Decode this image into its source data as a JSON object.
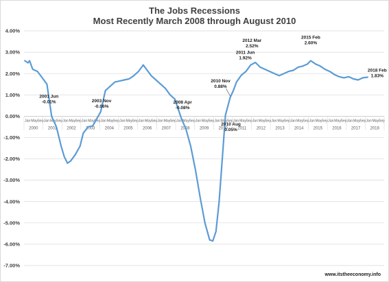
{
  "chart_data": {
    "type": "line",
    "title": "The Jobs Recessions",
    "subtitle": "Most Recently March 2008 through August 2010",
    "ylim": [
      -7.0,
      4.0
    ],
    "y_ticks": [
      "4.00%",
      "3.00%",
      "2.00%",
      "1.00%",
      "0.00%",
      "-1.00%",
      "-2.00%",
      "-3.00%",
      "-4.00%",
      "-5.00%",
      "-6.00%",
      "-7.00%"
    ],
    "month_labels": [
      "Jan",
      "May",
      "Sep"
    ],
    "years": [
      "2000",
      "2001",
      "2002",
      "2003",
      "2004",
      "2005",
      "2006",
      "2007",
      "2008",
      "2009",
      "2010",
      "2011",
      "2012",
      "2013",
      "2014",
      "2015",
      "2016",
      "2017",
      "2018"
    ],
    "grid": "horizontal",
    "series": [
      {
        "color": "#5b9bd5",
        "points": [
          [
            "2000-01",
            2.6
          ],
          [
            "2000-03",
            2.5
          ],
          [
            "2000-04",
            2.6
          ],
          [
            "2000-06",
            2.2
          ],
          [
            "2000-09",
            2.1
          ],
          [
            "2000-12",
            1.8
          ],
          [
            "2001-03",
            1.5
          ],
          [
            "2001-06",
            -0.01
          ],
          [
            "2001-09",
            -0.5
          ],
          [
            "2001-12",
            -1.4
          ],
          [
            "2002-02",
            -1.9
          ],
          [
            "2002-04",
            -2.2
          ],
          [
            "2002-06",
            -2.1
          ],
          [
            "2002-09",
            -1.8
          ],
          [
            "2002-12",
            -1.4
          ],
          [
            "2003-02",
            -0.8
          ],
          [
            "2003-05",
            -0.5
          ],
          [
            "2003-08",
            -0.45
          ],
          [
            "2003-11",
            -0.06
          ],
          [
            "2004-01",
            0.2
          ],
          [
            "2004-04",
            1.2
          ],
          [
            "2004-07",
            1.4
          ],
          [
            "2004-10",
            1.6
          ],
          [
            "2005-01",
            1.65
          ],
          [
            "2005-04",
            1.7
          ],
          [
            "2005-07",
            1.75
          ],
          [
            "2005-10",
            1.9
          ],
          [
            "2006-01",
            2.1
          ],
          [
            "2006-03",
            2.3
          ],
          [
            "2006-04",
            2.4
          ],
          [
            "2006-06",
            2.2
          ],
          [
            "2006-09",
            1.9
          ],
          [
            "2006-12",
            1.7
          ],
          [
            "2007-03",
            1.5
          ],
          [
            "2007-06",
            1.3
          ],
          [
            "2007-09",
            1.0
          ],
          [
            "2007-12",
            0.8
          ],
          [
            "2008-04",
            -0.08
          ],
          [
            "2008-07",
            -0.6
          ],
          [
            "2008-10",
            -1.4
          ],
          [
            "2009-01",
            -2.5
          ],
          [
            "2009-04",
            -3.8
          ],
          [
            "2009-07",
            -5.0
          ],
          [
            "2009-10",
            -5.8
          ],
          [
            "2009-12",
            -5.85
          ],
          [
            "2010-02",
            -5.4
          ],
          [
            "2010-04",
            -4.0
          ],
          [
            "2010-06",
            -2.0
          ],
          [
            "2010-08",
            0.05
          ],
          [
            "2010-11",
            0.88
          ],
          [
            "2011-01",
            1.2
          ],
          [
            "2011-03",
            1.6
          ],
          [
            "2011-06",
            1.92
          ],
          [
            "2011-09",
            2.1
          ],
          [
            "2011-12",
            2.4
          ],
          [
            "2012-03",
            2.52
          ],
          [
            "2012-06",
            2.3
          ],
          [
            "2012-09",
            2.2
          ],
          [
            "2012-12",
            2.1
          ],
          [
            "2013-03",
            2.0
          ],
          [
            "2013-06",
            1.9
          ],
          [
            "2013-09",
            2.0
          ],
          [
            "2013-12",
            2.1
          ],
          [
            "2014-03",
            2.15
          ],
          [
            "2014-06",
            2.3
          ],
          [
            "2014-09",
            2.35
          ],
          [
            "2014-12",
            2.45
          ],
          [
            "2015-02",
            2.6
          ],
          [
            "2015-05",
            2.45
          ],
          [
            "2015-08",
            2.35
          ],
          [
            "2015-11",
            2.2
          ],
          [
            "2016-02",
            2.1
          ],
          [
            "2016-05",
            1.95
          ],
          [
            "2016-08",
            1.85
          ],
          [
            "2016-11",
            1.8
          ],
          [
            "2017-02",
            1.85
          ],
          [
            "2017-05",
            1.75
          ],
          [
            "2017-08",
            1.7
          ],
          [
            "2017-11",
            1.8
          ],
          [
            "2018-02",
            1.83
          ]
        ]
      }
    ],
    "annotations": [
      {
        "lines": [
          "2001 Jun",
          "-0.01%"
        ],
        "date": "2001-06",
        "value": -0.01
      },
      {
        "lines": [
          "2003 Nov",
          "-0.06%"
        ],
        "date": "2003-11",
        "value": -0.06
      },
      {
        "lines": [
          "2008 Apr",
          "-0.08%"
        ],
        "date": "2008-04",
        "value": -0.08
      },
      {
        "lines": [
          "2010 Nov",
          "0.88%"
        ],
        "date": "2010-11",
        "value": 0.88
      },
      {
        "lines": [
          "2011 Jun",
          "1.92%"
        ],
        "date": "2011-06",
        "value": 1.92
      },
      {
        "lines": [
          "2010 Aug",
          "0.05%"
        ],
        "date": "2010-08",
        "value": 0.05
      },
      {
        "lines": [
          "2012 Mar",
          "2.52%"
        ],
        "date": "2012-03",
        "value": 2.52
      },
      {
        "lines": [
          "2015 Feb",
          "2.60%"
        ],
        "date": "2015-02",
        "value": 2.6
      },
      {
        "lines": [
          "2018 Feb",
          "1.83%"
        ],
        "date": "2018-02",
        "value": 1.83
      }
    ]
  },
  "watermark": "www.itstheeconomy.info"
}
